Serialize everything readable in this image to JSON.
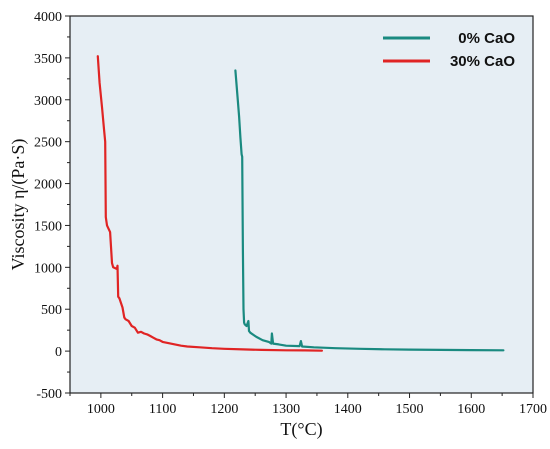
{
  "chart_data": {
    "type": "line",
    "xlabel": "T(°C)",
    "ylabel": "Viscosity η/(Pa·S)",
    "xlim": [
      950,
      1700
    ],
    "ylim": [
      -500,
      4000
    ],
    "x_ticks": [
      "1000",
      "1100",
      "1200",
      "1300",
      "1400",
      "1500",
      "1600",
      "1700"
    ],
    "y_ticks": [
      "-500",
      "0",
      "500",
      "1000",
      "1500",
      "2000",
      "2500",
      "3000",
      "3500",
      "4000"
    ],
    "grid": false,
    "background": "#e6eef4",
    "legend_position": "top-right",
    "series": [
      {
        "name": "0%  CaO",
        "color": "#1a8a80",
        "x": [
          1218,
          1222,
          1224,
          1226,
          1228,
          1229,
          1230,
          1231,
          1232,
          1233,
          1236,
          1239,
          1240,
          1242,
          1246,
          1252,
          1262,
          1272,
          1276,
          1277,
          1279,
          1288,
          1300,
          1322,
          1324,
          1326,
          1345,
          1380,
          1420,
          1460,
          1500,
          1550,
          1600,
          1652
        ],
        "y": [
          3350,
          2980,
          2800,
          2550,
          2350,
          2320,
          1200,
          500,
          340,
          320,
          300,
          360,
          240,
          220,
          200,
          170,
          130,
          110,
          90,
          210,
          90,
          80,
          65,
          60,
          120,
          55,
          45,
          35,
          28,
          22,
          18,
          15,
          12,
          10
        ]
      },
      {
        "name": "30%  CaO",
        "color": "#e02424",
        "x": [
          995,
          998,
          1002,
          1005,
          1007,
          1008,
          1010,
          1015,
          1018,
          1020,
          1026,
          1027,
          1028,
          1030,
          1035,
          1038,
          1040,
          1045,
          1050,
          1055,
          1060,
          1065,
          1070,
          1075,
          1080,
          1085,
          1090,
          1095,
          1100,
          1110,
          1120,
          1130,
          1140,
          1160,
          1180,
          1200,
          1230,
          1260,
          1300,
          1330,
          1358
        ],
        "y": [
          3520,
          3200,
          2900,
          2650,
          2500,
          1600,
          1500,
          1420,
          1050,
          1000,
          980,
          1020,
          650,
          630,
          520,
          400,
          380,
          360,
          300,
          280,
          220,
          230,
          210,
          200,
          180,
          160,
          140,
          130,
          110,
          95,
          80,
          65,
          55,
          45,
          35,
          28,
          20,
          15,
          10,
          8,
          5
        ]
      }
    ]
  }
}
